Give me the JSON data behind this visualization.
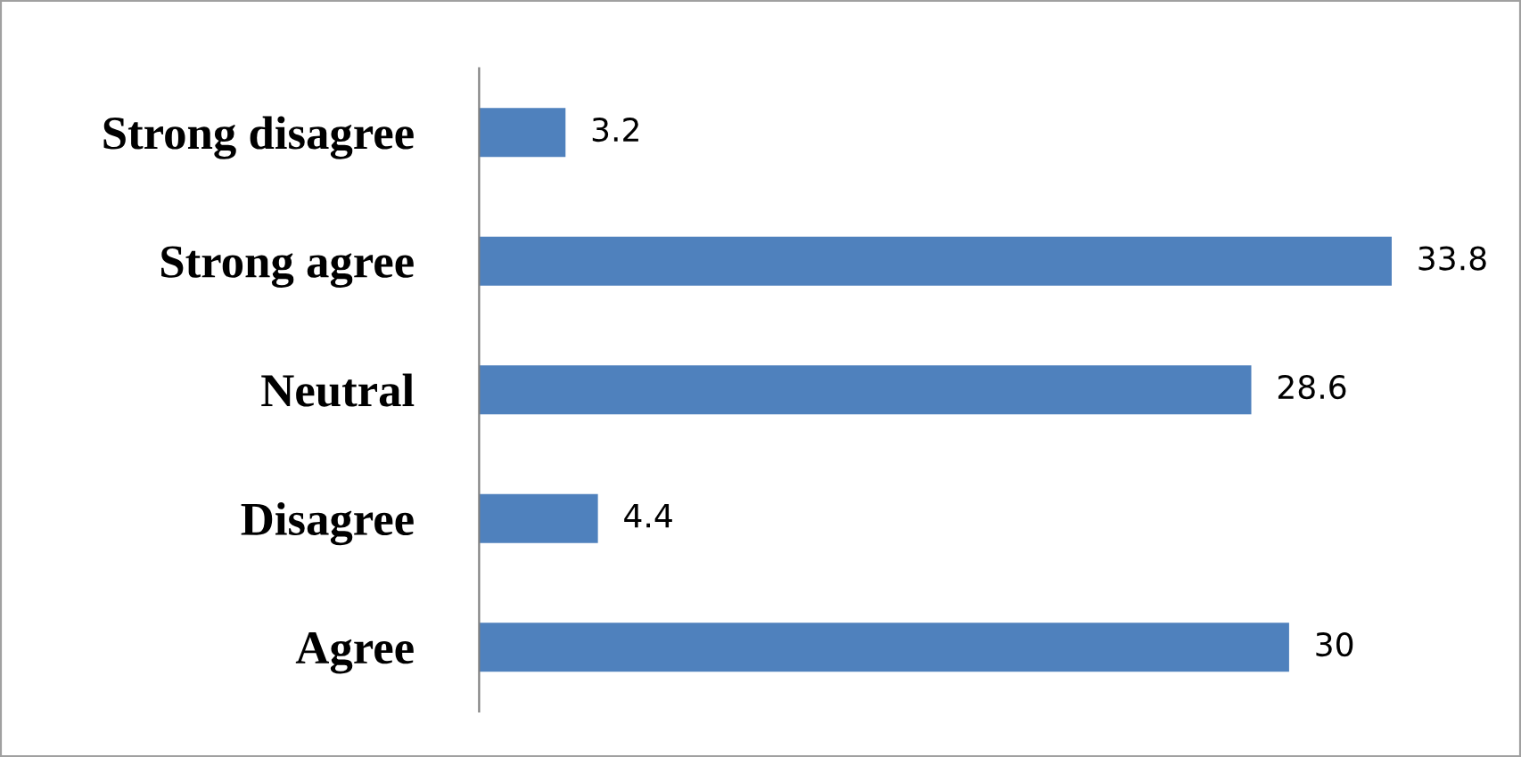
{
  "chart_data": {
    "type": "bar",
    "orientation": "horizontal",
    "categories": [
      "Strong disagree",
      "Strong agree",
      "Neutral",
      "Disagree",
      "Agree"
    ],
    "values": [
      3.2,
      33.8,
      28.6,
      4.4,
      30
    ],
    "color": "#4f81bd",
    "data_labels": true,
    "grid": false,
    "legend": false
  }
}
